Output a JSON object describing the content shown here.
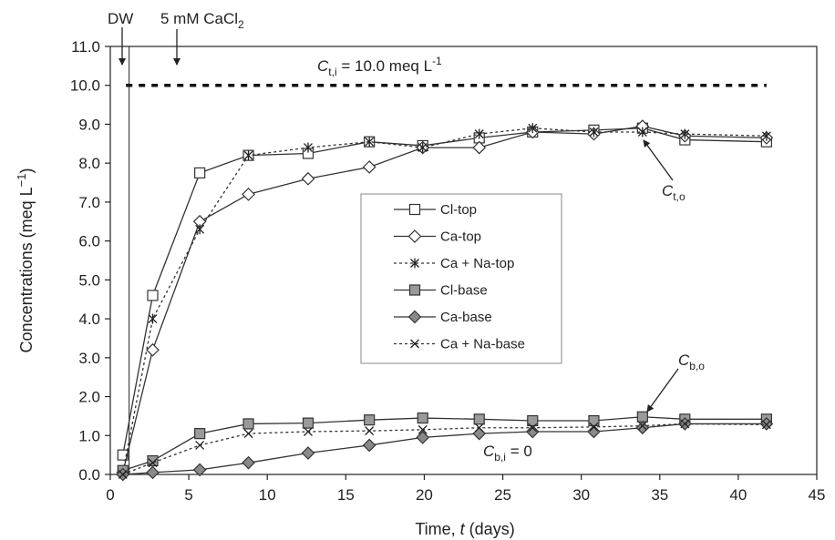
{
  "chart_data": {
    "type": "line",
    "xlabel": "Time, t (days)",
    "xlabel_parts": {
      "prefix": "Time, ",
      "var": "t",
      "suffix": " (days)"
    },
    "ylabel": "Concentrations (meq L−1)",
    "ylabel_parts": {
      "prefix": "Concentrations (meq L",
      "sup": "−1",
      "suffix": ")"
    },
    "xlim": [
      0,
      45
    ],
    "ylim": [
      0,
      11
    ],
    "xticks": [
      0,
      5,
      10,
      15,
      20,
      25,
      30,
      35,
      40,
      45
    ],
    "yticks": [
      "0.0",
      "1.0",
      "2.0",
      "3.0",
      "4.0",
      "5.0",
      "6.0",
      "7.0",
      "8.0",
      "9.0",
      "10.0",
      "11.0"
    ],
    "grid": false,
    "legend_position": "center",
    "series": [
      {
        "name": "Cl-top",
        "marker": "square-open",
        "line": "solid",
        "x": [
          0.8,
          2.7,
          5.7,
          8.8,
          12.6,
          16.5,
          19.9,
          23.5,
          26.9,
          30.8,
          33.9,
          36.6,
          41.8
        ],
        "y": [
          0.5,
          4.6,
          7.75,
          8.2,
          8.25,
          8.55,
          8.45,
          8.65,
          8.8,
          8.85,
          8.9,
          8.6,
          8.55
        ]
      },
      {
        "name": "Ca-top",
        "marker": "diamond-open",
        "line": "solid",
        "x": [
          0.8,
          2.7,
          5.7,
          8.8,
          12.6,
          16.5,
          19.9,
          23.5,
          26.9,
          30.8,
          33.9,
          36.6,
          41.8
        ],
        "y": [
          0.05,
          3.2,
          6.5,
          7.2,
          7.6,
          7.9,
          8.4,
          8.4,
          8.8,
          8.75,
          8.95,
          8.7,
          8.65
        ]
      },
      {
        "name": "Ca + Na-top",
        "marker": "star",
        "line": "dotted",
        "x": [
          0.8,
          2.7,
          5.7,
          8.8,
          12.6,
          16.5,
          19.9,
          23.5,
          26.9,
          30.8,
          33.9,
          36.6,
          41.8
        ],
        "y": [
          0.05,
          4.0,
          6.3,
          8.2,
          8.4,
          8.55,
          8.4,
          8.75,
          8.9,
          8.8,
          8.8,
          8.75,
          8.7
        ]
      },
      {
        "name": "Cl-base",
        "marker": "square-filled",
        "line": "solid",
        "x": [
          0.8,
          2.7,
          5.7,
          8.8,
          12.6,
          16.5,
          19.9,
          23.5,
          26.9,
          30.8,
          33.9,
          36.6,
          41.8
        ],
        "y": [
          0.1,
          0.35,
          1.05,
          1.3,
          1.32,
          1.4,
          1.45,
          1.42,
          1.38,
          1.38,
          1.48,
          1.42,
          1.42
        ]
      },
      {
        "name": "Ca-base",
        "marker": "diamond-filled",
        "line": "solid",
        "x": [
          0.8,
          2.7,
          5.7,
          8.8,
          12.6,
          16.5,
          19.9,
          23.5,
          26.9,
          30.8,
          33.9,
          36.6,
          41.8
        ],
        "y": [
          0.0,
          0.05,
          0.12,
          0.3,
          0.55,
          0.75,
          0.95,
          1.05,
          1.1,
          1.1,
          1.2,
          1.3,
          1.3
        ]
      },
      {
        "name": "Ca + Na-base",
        "marker": "x",
        "line": "dotted",
        "x": [
          0.8,
          2.7,
          5.7,
          8.8,
          12.6,
          16.5,
          19.9,
          23.5,
          26.9,
          30.8,
          33.9,
          36.6,
          41.8
        ],
        "y": [
          0.0,
          0.3,
          0.75,
          1.05,
          1.1,
          1.12,
          1.15,
          1.2,
          1.2,
          1.22,
          1.25,
          1.3,
          1.28
        ]
      }
    ],
    "reference_line": {
      "y": 10.0,
      "x_range": [
        1.0,
        41.8
      ],
      "style": "dashed",
      "label_var": "C",
      "label_sub": "t,i",
      "label_value": " = 10.0 meq L",
      "label_sup": "-1"
    },
    "vertical_marker_line": {
      "x": 1.2
    },
    "annotations": {
      "dw": {
        "text": "DW",
        "x": 1.0
      },
      "cacl2": {
        "text_main": "5 mM CaCl",
        "text_sub": "2",
        "x": 4.2
      },
      "cto": {
        "var": "C",
        "sub": "t,o",
        "point_x": 33.9,
        "point_y": 8.85
      },
      "cbo": {
        "var": "C",
        "sub": "b,o",
        "point_x": 33.9,
        "point_y": 1.48
      },
      "cbi": {
        "var": "C",
        "sub": "b,i",
        "suffix": " = 0"
      }
    }
  }
}
